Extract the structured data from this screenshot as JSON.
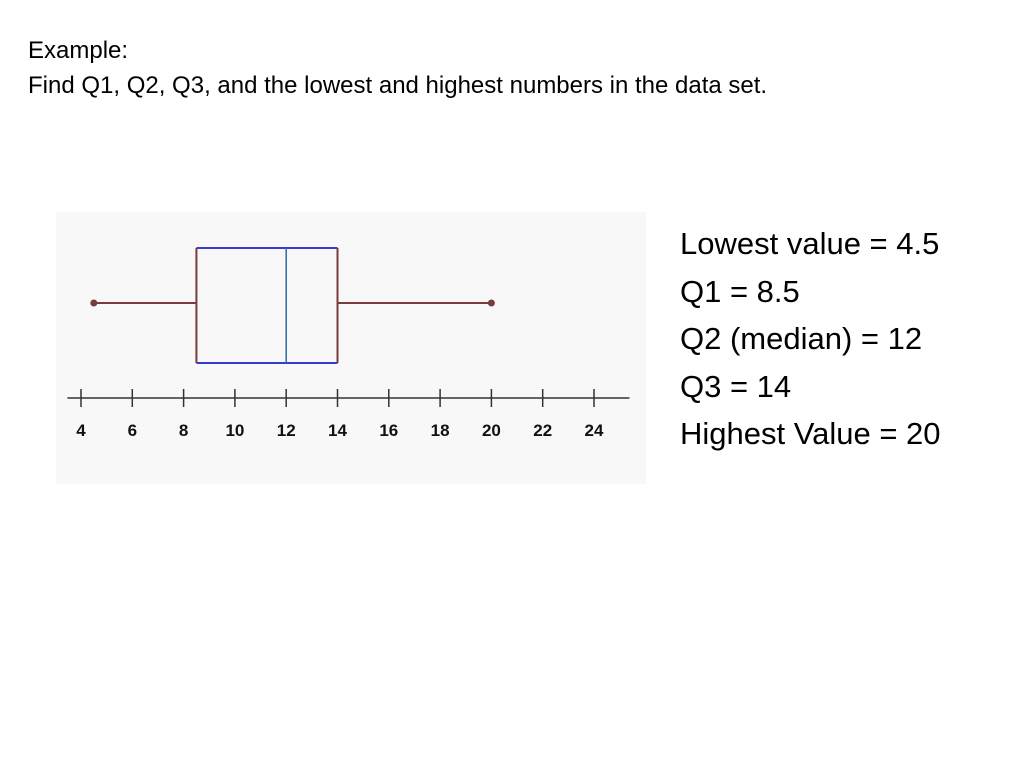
{
  "slide": {
    "heading": "Example:",
    "question": "Find Q1, Q2, Q3, and the lowest and highest numbers in the data set."
  },
  "answers": [
    "Lowest value = 4.5",
    "Q1 = 8.5",
    "Q2 (median) = 12",
    "Q3 = 14",
    "Highest Value = 20"
  ],
  "chart_data": {
    "type": "boxplot",
    "title": "",
    "xlabel": "",
    "ylabel": "",
    "orientation": "horizontal",
    "min": 4.5,
    "q1": 8.5,
    "median": 12,
    "q3": 14,
    "max": 20,
    "xlim": [
      3,
      25.5
    ],
    "ticks": [
      4,
      6,
      8,
      10,
      12,
      14,
      16,
      18,
      20,
      22,
      24
    ],
    "grid": false,
    "colors": {
      "whisker": "#7a3b3b",
      "box": "#3a3ad0",
      "median": "#2a6aa0",
      "axis": "#333333"
    }
  }
}
